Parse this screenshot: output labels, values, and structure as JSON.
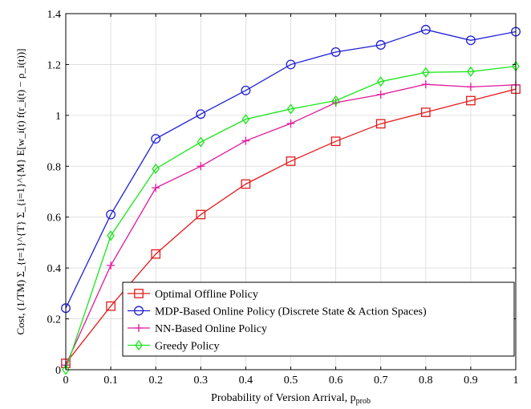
{
  "chart_data": {
    "type": "line",
    "xlabel": "Probability of Version Arrival, p",
    "xlabel_sub": "prob",
    "ylabel": "Cost, (1/TM) Σ_{t=1}^{T} Σ_{i=1}^{M} E[w_i(t) f(r_i(t) − ρ_i(t))]",
    "xlim": [
      0,
      1
    ],
    "ylim": [
      0,
      1.4
    ],
    "x_ticks": [
      0,
      0.1,
      0.2,
      0.3,
      0.4,
      0.5,
      0.6,
      0.7,
      0.8,
      0.9,
      1
    ],
    "x_tick_labels": [
      "0",
      "0.1",
      "0.2",
      "0.3",
      "0.4",
      "0.5",
      "0.6",
      "0.7",
      "0.8",
      "0.9",
      "1"
    ],
    "y_ticks": [
      0,
      0.2,
      0.4,
      0.6,
      0.8,
      1.0,
      1.2,
      1.4
    ],
    "y_tick_labels": [
      "0",
      "0.2",
      "0.4",
      "0.6",
      "0.8",
      "1",
      "1.2",
      "1.4"
    ],
    "grid": true,
    "legend_position": "bottom-right",
    "x": [
      0,
      0.1,
      0.2,
      0.3,
      0.4,
      0.5,
      0.6,
      0.7,
      0.8,
      0.9,
      1
    ],
    "series": [
      {
        "name": "Optimal Offline Policy",
        "color": "#e41a1c",
        "marker": "square",
        "values": [
          0.025,
          0.25,
          0.455,
          0.61,
          0.73,
          0.82,
          0.898,
          0.967,
          1.012,
          1.058,
          1.103
        ]
      },
      {
        "name": "MDP-Based Online Policy (Discrete State & Action Spaces)",
        "color": "#1f1fd6",
        "marker": "circle",
        "values": [
          0.242,
          0.61,
          0.908,
          1.005,
          1.098,
          1.2,
          1.249,
          1.277,
          1.337,
          1.295,
          1.329
        ]
      },
      {
        "name": "NN-Based Online Policy",
        "color": "#e0189b",
        "marker": "plus",
        "values": [
          0.018,
          0.41,
          0.715,
          0.8,
          0.9,
          0.968,
          1.05,
          1.082,
          1.122,
          1.112,
          1.12
        ]
      },
      {
        "name": "Greedy Policy",
        "color": "#19e619",
        "marker": "diamond",
        "values": [
          0.0,
          0.527,
          0.79,
          0.895,
          0.985,
          1.025,
          1.058,
          1.133,
          1.169,
          1.172,
          1.193
        ]
      }
    ]
  }
}
